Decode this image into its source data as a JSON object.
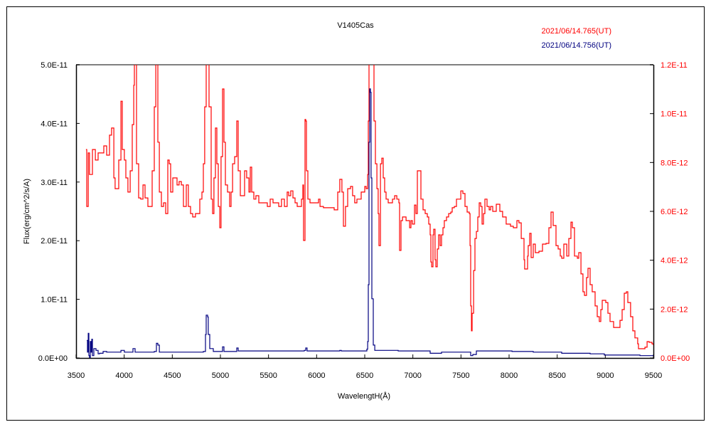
{
  "chart_data": {
    "type": "line",
    "title": "V1405Cas",
    "xlabel": "WavelengtH(Å)",
    "ylabel": "Flux(erg/cm^2/s/A)",
    "xlim": [
      3500,
      9500
    ],
    "xticks": [
      "3500",
      "4000",
      "4500",
      "5000",
      "5500",
      "6000",
      "6500",
      "7000",
      "7500",
      "8000",
      "8500",
      "9000",
      "9500"
    ],
    "ylim_left": [
      0,
      5e-11
    ],
    "yticks_left": [
      "0.0E+00",
      "1.0E-11",
      "2.0E-11",
      "3.0E-11",
      "4.0E-11",
      "5.0E-11"
    ],
    "ylim_right": [
      0,
      1.2e-11
    ],
    "yticks_right": [
      "0.0E+00",
      "2.0E-12",
      "4.0E-12",
      "6.0E-12",
      "8.0E-12",
      "1.0E-11",
      "1.2E-11"
    ],
    "grid": false,
    "legend_placement": "top-right",
    "series": [
      {
        "name": "2021/06/14.765(UT)",
        "color": "#ff0000",
        "axis": "right",
        "unit_scale": 1e-12,
        "x": [
          3603,
          3611,
          3626,
          3640,
          3670,
          3700,
          3729,
          3759,
          3788,
          3818,
          3847,
          3869,
          3892,
          3906,
          3929,
          3943,
          3966,
          3980,
          4002,
          4017,
          4039,
          4062,
          4084,
          4099,
          4106,
          4121,
          4128,
          4150,
          4172,
          4195,
          4217,
          4246,
          4268,
          4291,
          4313,
          4328,
          4342,
          4350,
          4365,
          4387,
          4409,
          4431,
          4453,
          4468,
          4483,
          4505,
          4527,
          4549,
          4571,
          4594,
          4616,
          4645,
          4667,
          4690,
          4712,
          4741,
          4764,
          4786,
          4808,
          4823,
          4837,
          4852,
          4874,
          4882,
          4904,
          4919,
          4933,
          4948,
          4963,
          4978,
          4993,
          5007,
          5022,
          5037,
          5052,
          5074,
          5096,
          5111,
          5126,
          5148,
          5170,
          5185,
          5207,
          5229,
          5251,
          5273,
          5296,
          5310,
          5325,
          5347,
          5369,
          5399,
          5429,
          5458,
          5488,
          5517,
          5547,
          5576,
          5606,
          5635,
          5665,
          5694,
          5709,
          5731,
          5754,
          5776,
          5798,
          5820,
          5842,
          5857,
          5864,
          5872,
          5879,
          5887,
          5894,
          5909,
          5931,
          5961,
          5998,
          6020,
          6035,
          6071,
          6108,
          6145,
          6182,
          6204,
          6219,
          6241,
          6263,
          6278,
          6300,
          6323,
          6352,
          6374,
          6396,
          6419,
          6441,
          6463,
          6485,
          6500,
          6515,
          6530,
          6537,
          6544,
          6589,
          6596,
          6611,
          6626,
          6640,
          6648,
          6655,
          6663,
          6677,
          6692,
          6707,
          6722,
          6744,
          6766,
          6788,
          6810,
          6833,
          6855,
          6862,
          6877,
          6892,
          6914,
          6929,
          6951,
          6966,
          6980,
          6995,
          7017,
          7032,
          7047,
          7069,
          7084,
          7106,
          7128,
          7150,
          7165,
          7180,
          7187,
          7195,
          7209,
          7217,
          7231,
          7239,
          7254,
          7268,
          7283,
          7298,
          7313,
          7327,
          7350,
          7372,
          7394,
          7409,
          7431,
          7453,
          7475,
          7498,
          7520,
          7542,
          7564,
          7586,
          7594,
          7601,
          7609,
          7616,
          7631,
          7645,
          7660,
          7675,
          7690,
          7705,
          7719,
          7734,
          7749,
          7771,
          7793,
          7808,
          7830,
          7867,
          7904,
          7933,
          7970,
          8015,
          8044,
          8081,
          8103,
          8126,
          8155,
          8162,
          8192,
          8199,
          8214,
          8229,
          8251,
          8273,
          8310,
          8347,
          8384,
          8414,
          8436,
          8458,
          8488,
          8510,
          8532,
          8547,
          8569,
          8599,
          8621,
          8643,
          8658,
          8680,
          8709,
          8724,
          8747,
          8768,
          8783,
          8805,
          8820,
          8842,
          8864,
          8894,
          8916,
          8938,
          8953,
          8968,
          9005,
          9027,
          9049,
          9086,
          9123,
          9153,
          9175,
          9197,
          9219,
          9234,
          9263,
          9286,
          9308,
          9337,
          9345,
          9382,
          9412,
          9434,
          9456,
          9485,
          9500
        ],
        "y": [
          8.53,
          6.2,
          8.39,
          7.51,
          8.53,
          8.1,
          8.39,
          8.39,
          8.68,
          8.3,
          9.12,
          9.41,
          7.37,
          6.93,
          6.93,
          8.1,
          10.51,
          8.53,
          8.1,
          7.37,
          6.79,
          7.66,
          9.55,
          11.16,
          13,
          13,
          7.95,
          6.55,
          6.5,
          7.08,
          6.55,
          6.2,
          6.2,
          7.66,
          10.28,
          13,
          13,
          8.83,
          6.79,
          6.2,
          6.35,
          5.91,
          8.1,
          7.95,
          6.79,
          7.37,
          7.37,
          7.08,
          7.22,
          7.08,
          6.2,
          7.08,
          6.2,
          5.91,
          5.77,
          5.91,
          5.91,
          6.5,
          6.79,
          7.95,
          10.28,
          13,
          13,
          10.28,
          6.5,
          5.91,
          7.37,
          9.41,
          7.95,
          6.2,
          5.33,
          8.24,
          11.01,
          8.83,
          7.08,
          6.79,
          6.2,
          6.79,
          7.95,
          8.24,
          9.7,
          7.66,
          6.64,
          6.64,
          7.66,
          7.37,
          6.79,
          7.81,
          6.79,
          6.5,
          6.64,
          6.35,
          6.35,
          6.35,
          6.2,
          6.5,
          6.35,
          6.35,
          6.2,
          6.5,
          6.2,
          6.79,
          6.64,
          6.84,
          6.55,
          6.35,
          6.2,
          6.2,
          6.5,
          7.08,
          4.81,
          4.81,
          9.76,
          9.7,
          7.66,
          6.5,
          6.35,
          6.35,
          6.35,
          6.5,
          6.2,
          6.15,
          6.15,
          6.15,
          6.06,
          6.06,
          6.79,
          7.31,
          6.79,
          5.39,
          6.2,
          6.93,
          7.02,
          6.64,
          6.35,
          6.5,
          6.5,
          6.79,
          6.79,
          7.02,
          6.93,
          7.51,
          9.7,
          13,
          13,
          9.7,
          7.95,
          6.93,
          5.91,
          4.6,
          4.6,
          7.95,
          8.18,
          7.37,
          6.79,
          6.5,
          6.35,
          6.35,
          6.5,
          6.64,
          6.5,
          6.35,
          4.4,
          5.62,
          5.77,
          5.77,
          5.62,
          5.62,
          5.33,
          5.62,
          5.48,
          6.26,
          5.91,
          7.66,
          7.66,
          6.5,
          6.06,
          5.91,
          5.77,
          5.48,
          5.04,
          3.93,
          3.73,
          5.04,
          5.27,
          4.02,
          3.73,
          4.46,
          5.04,
          4.6,
          5.04,
          5.33,
          5.62,
          5.77,
          5.91,
          5.97,
          6.15,
          6.2,
          6.5,
          6.5,
          6.84,
          6.73,
          6.2,
          5.97,
          5.91,
          4.6,
          2.13,
          1.11,
          1.83,
          3.58,
          4.89,
          5.18,
          5.77,
          6.35,
          6.2,
          5.48,
          5.91,
          6.5,
          6.2,
          6.06,
          6.2,
          6.0,
          6.29,
          6.0,
          5.77,
          5.48,
          5.39,
          5.33,
          5.62,
          5.53,
          4.89,
          4.02,
          3.64,
          4.17,
          4.6,
          5.1,
          4.11,
          4.66,
          4.31,
          4.37,
          4.66,
          4.69,
          5.33,
          5.97,
          5.42,
          4.6,
          4.46,
          4.17,
          4.08,
          4.66,
          4.17,
          4.89,
          5.56,
          5.33,
          4.17,
          4.08,
          4.31,
          3.44,
          2.71,
          2.56,
          3.29,
          3.67,
          3.0,
          2.71,
          2.13,
          1.69,
          1.49,
          1.98,
          2.36,
          2.27,
          1.83,
          1.49,
          1.25,
          1.25,
          1.54,
          1.98,
          2.65,
          2.71,
          2.27,
          1.69,
          1.11,
          0.82,
          0.58,
          0.38,
          0.38,
          0.44,
          0.67,
          0.64,
          0.58,
          0.52
        ]
      },
      {
        "name": "2021/06/14.756(UT)",
        "color": "#000080",
        "axis": "left",
        "unit_scale": 1e-11,
        "x": [
          3611,
          3618,
          3626,
          3633,
          3640,
          3648,
          3655,
          3663,
          3670,
          3685,
          3707,
          3729,
          3744,
          3781,
          3818,
          3966,
          4002,
          4091,
          4113,
          4313,
          4335,
          4350,
          4365,
          4631,
          4823,
          4845,
          4852,
          4867,
          4874,
          4889,
          4926,
          5022,
          5037,
          5170,
          5185,
          5665,
          5872,
          5887,
          5901,
          6241,
          6256,
          6522,
          6530,
          6537,
          6544,
          6552,
          6559,
          6566,
          6574,
          6589,
          6604,
          6847,
          7143,
          7180,
          7298,
          7586,
          7601,
          7623,
          7660,
          8030,
          8140,
          8251,
          8547,
          8842,
          8990,
          9212,
          9360,
          9500
        ],
        "y": [
          0.3,
          0.1,
          0.42,
          0.04,
          0.0,
          0.28,
          0.1,
          0.32,
          0.04,
          0.16,
          0.13,
          0.07,
          0.08,
          0.11,
          0.1,
          0.13,
          0.1,
          0.16,
          0.1,
          0.11,
          0.25,
          0.22,
          0.1,
          0.1,
          0.11,
          0.4,
          0.73,
          0.7,
          0.4,
          0.16,
          0.11,
          0.19,
          0.11,
          0.17,
          0.12,
          0.12,
          0.13,
          0.17,
          0.12,
          0.13,
          0.12,
          0.15,
          0.28,
          1.25,
          3.68,
          4.59,
          4.53,
          3.07,
          1.01,
          0.22,
          0.13,
          0.12,
          0.12,
          0.08,
          0.1,
          0.1,
          0.04,
          0.06,
          0.12,
          0.11,
          0.11,
          0.1,
          0.08,
          0.07,
          0.05,
          0.05,
          0.04,
          0.05
        ]
      }
    ]
  }
}
